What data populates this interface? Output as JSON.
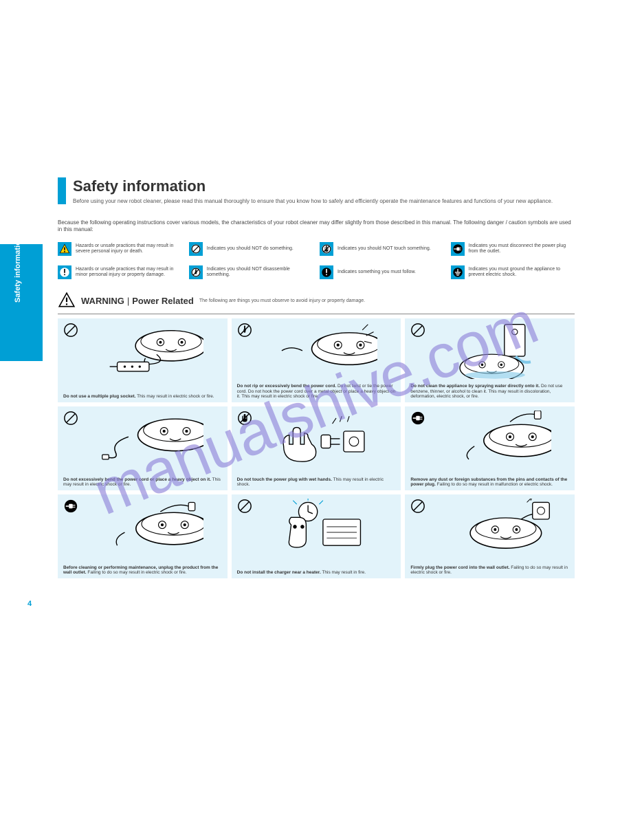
{
  "page": {
    "number": "4",
    "tab_label": "Safety information"
  },
  "title": {
    "main": "Safety information",
    "sub": "Before using your new robot cleaner, please read this manual thoroughly to ensure that you know how to safely and efficiently operate the maintenance features and functions of your new appliance."
  },
  "intro": "Because the following operating instructions cover various models, the characteristics of your robot cleaner may differ slightly from those described in this manual. The following danger / caution symbols are used in this manual:",
  "legend": [
    {
      "icon": "warning-tri-yellow",
      "text": "Hazards or unsafe practices that may result in severe personal injury or death."
    },
    {
      "icon": "prohibit",
      "text": "Indicates you should NOT do something."
    },
    {
      "icon": "no-touch",
      "text": "Indicates you should NOT touch something."
    },
    {
      "icon": "unplug",
      "text": "Indicates you must disconnect the power plug from the outlet."
    },
    {
      "icon": "caution-circle",
      "text": "Hazards or unsafe practices that may result in minor personal injury or property damage."
    },
    {
      "icon": "no-disassemble",
      "text": "Indicates you should NOT disassemble something."
    },
    {
      "icon": "must-do",
      "text": "Indicates something you must follow."
    },
    {
      "icon": "ground",
      "text": "Indicates you must ground the appliance to prevent electric shock."
    }
  ],
  "section": {
    "label": "WARNING",
    "sep": "|",
    "subset": "Power Related",
    "desc": "The following are things you must observe to avoid injury or property damage."
  },
  "panels": [
    {
      "icon": "prohibit",
      "illus": "vac-plugstrip",
      "caption_bold": "Do not use a multiple plug socket.",
      "caption": " This may result in electric shock or fire."
    },
    {
      "icon": "no-disassemble",
      "illus": "vac-spark",
      "caption_bold": "Do not rip or excessively bend the power cord.",
      "caption": " Do not twist or tie the power cord. Do not hook the power cord over a metal object or place a heavy object on it. This may result in electric shock or fire."
    },
    {
      "icon": "prohibit",
      "illus": "vac-water",
      "caption_bold": "Do not clean the appliance by spraying water directly onto it.",
      "caption": " Do not use benzene, thinner, or alcohol to clean it. This may result in discoloration, deformation, electric shock, or fire."
    },
    {
      "icon": "prohibit",
      "illus": "vac-cord-bent",
      "caption_bold": "Do not excessively bend the power cord or place a heavy object on it.",
      "caption": " This may result in electric shock or fire."
    },
    {
      "icon": "no-touch",
      "illus": "hand-plug",
      "caption_bold": "Do not touch the power plug with wet hands.",
      "caption": " This may result in electric shock."
    },
    {
      "icon": "unplug",
      "illus": "vac-unplug1",
      "caption_bold": "Remove any dust or foreign substances from the pins and contacts of the power plug.",
      "caption": " Failing to do so may result in malfunction or electric shock."
    },
    {
      "icon": "unplug",
      "illus": "vac-unplug2",
      "caption_bold": "Before cleaning or performing maintenance, unplug the product from the wall outlet.",
      "caption": " Failing to do so may result in electric shock or fire."
    },
    {
      "icon": "prohibit",
      "illus": "clock-heater",
      "caption_bold": "Do not install the charger near a heater.",
      "caption": " This may result in fire."
    },
    {
      "icon": "prohibit",
      "illus": "vac-outlet",
      "caption_bold": "Firmly plug the power cord into the wall outlet.",
      "caption": " Failing to do so may result in electric shock or fire."
    }
  ],
  "colors": {
    "accent": "#009fd5",
    "panel_bg": "#e2f3fa",
    "watermark": "#8a7dd8"
  }
}
